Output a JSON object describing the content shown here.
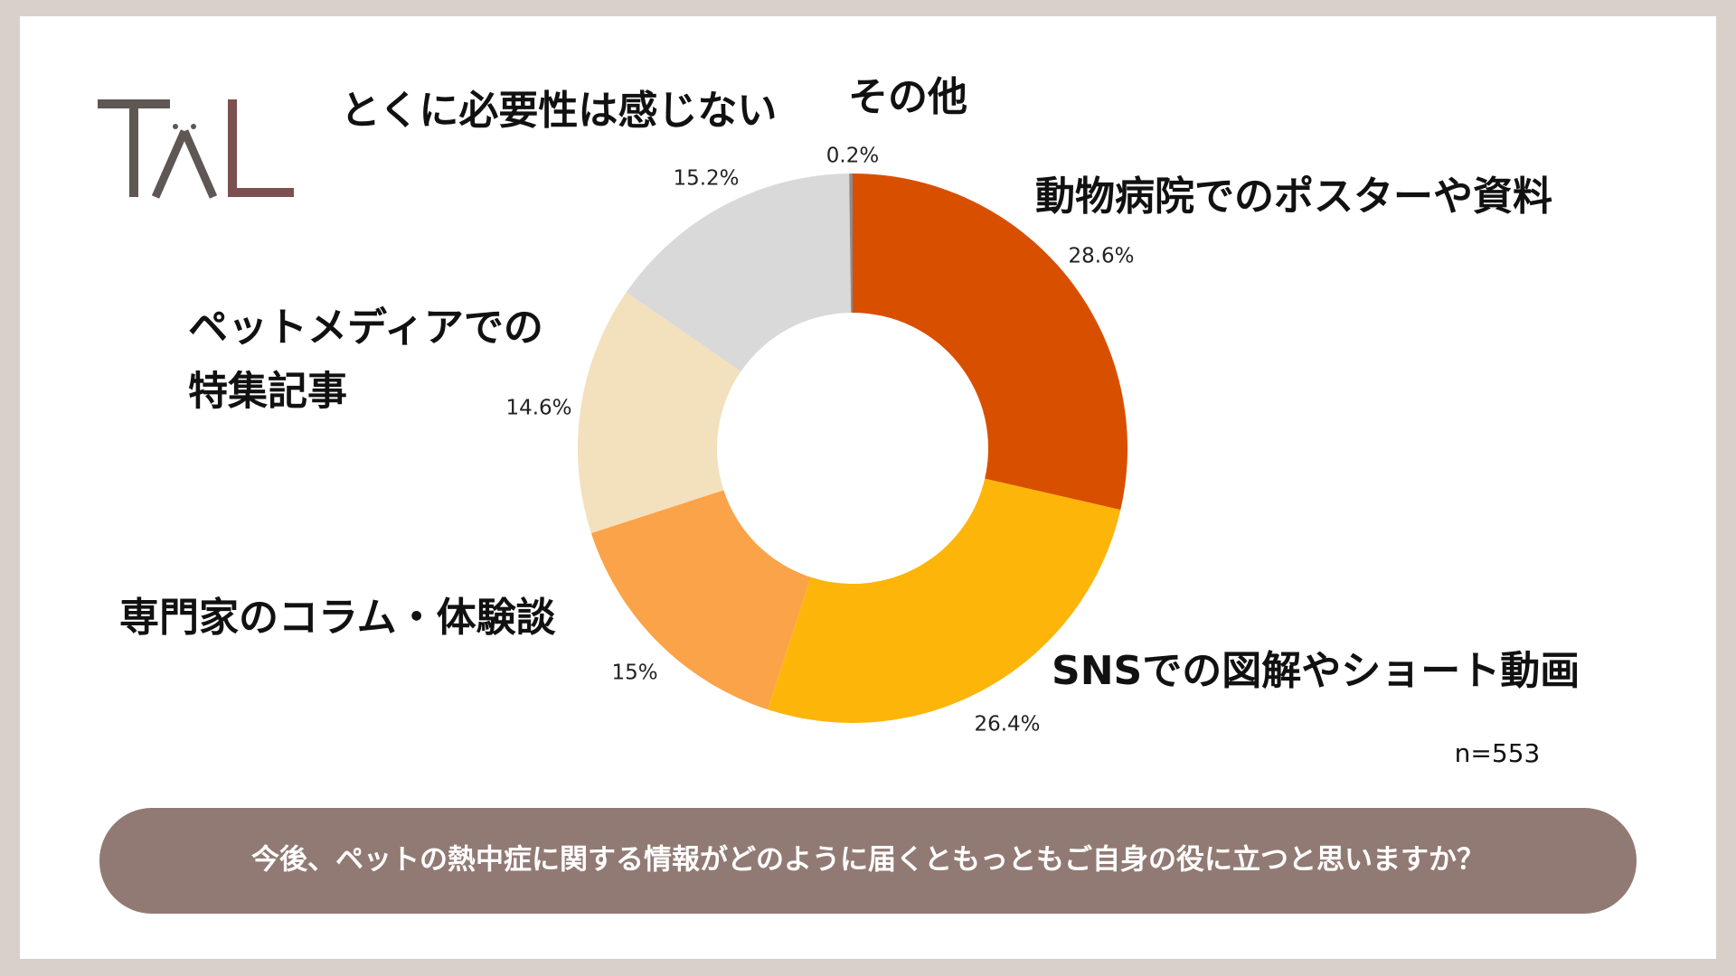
{
  "chart_data": {
    "type": "donut",
    "categories": [
      "動物病院でのポスターや資料",
      "SNSでの図解やショート動画",
      "専門家のコラム・体験談",
      "ペットメディアでの\n特集記事",
      "とくに必要性は感じない",
      "その他"
    ],
    "values": [
      28.6,
      26.4,
      15,
      14.6,
      15.2,
      0.2
    ],
    "value_labels": [
      "28.6%",
      "26.4%",
      "15%",
      "14.6%",
      "15.2%",
      "0.2%"
    ],
    "colors": [
      "#d94f00",
      "#fdb50a",
      "#fba348",
      "#f3e0bd",
      "#d9d9d9",
      "#8c8c8c"
    ],
    "annotation": "n=553",
    "question": "今後、ペットの熱中症に関する情報がどのように届くともっともご自身の役に立つと思いますか？"
  }
}
